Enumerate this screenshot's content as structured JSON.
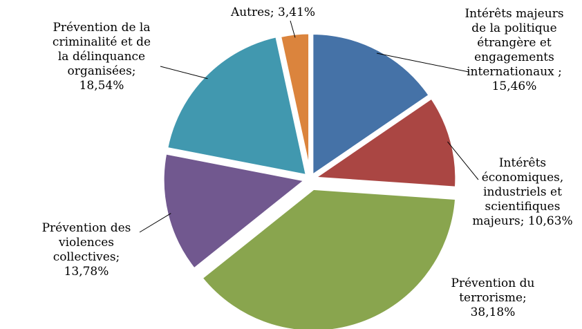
{
  "chart_data": {
    "type": "pie",
    "title": "",
    "slices": [
      {
        "label": "Intérêts majeurs de la politique étrangère et engagements internationaux",
        "value": 15.46,
        "color": "#4572A7"
      },
      {
        "label": "Intérêts économiques, industriels et scientifiques majeurs",
        "value": 10.63,
        "color": "#AA4643"
      },
      {
        "label": "Prévention du terrorisme",
        "value": 38.18,
        "color": "#89A54E"
      },
      {
        "label": "Prévention des violences collectives",
        "value": 13.78,
        "color": "#71588F"
      },
      {
        "label": "Prévention de la criminalité et de la délinquance organisées",
        "value": 18.54,
        "color": "#4198AF"
      },
      {
        "label": "Autres",
        "value": 3.41,
        "color": "#DB843D"
      }
    ],
    "data_labels": [
      {
        "lines": [
          "Intérêts majeurs",
          "de la politique",
          "étrangère et",
          "engagements",
          "internationaux ;",
          "15,46%"
        ]
      },
      {
        "lines": [
          "Intérêts",
          "économiques,",
          "industriels et",
          "scientifiques",
          "majeurs; 10,63%"
        ]
      },
      {
        "lines": [
          "Prévention du",
          "terrorisme;",
          "38,18%"
        ]
      },
      {
        "lines": [
          "Prévention des",
          "violences",
          "collectives;",
          "13,78%"
        ]
      },
      {
        "lines": [
          "Prévention de la",
          "criminalité et de",
          "la délinquance",
          "organisées;",
          "18,54%"
        ]
      },
      {
        "lines": [
          "Autres; 3,41%"
        ]
      }
    ]
  }
}
